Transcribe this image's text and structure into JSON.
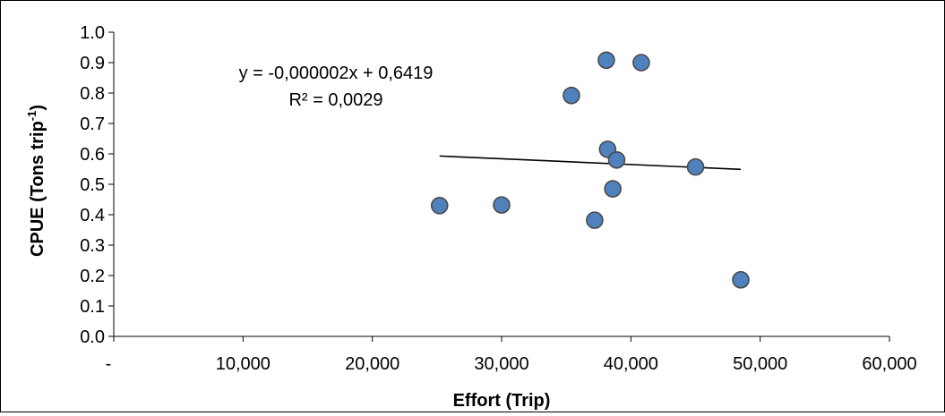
{
  "chart_data": {
    "type": "scatter",
    "xlabel": "Effort (Trip)",
    "ylabel": "CPUE (Tons trip",
    "ylabel_superscript": "-1",
    "ylabel_close": ")",
    "xlim": [
      0,
      60000
    ],
    "ylim": [
      0.0,
      1.0
    ],
    "x_ticks": [
      {
        "value": 0,
        "label": "-"
      },
      {
        "value": 10000,
        "label": "10,000"
      },
      {
        "value": 20000,
        "label": "20,000"
      },
      {
        "value": 30000,
        "label": "30,000"
      },
      {
        "value": 40000,
        "label": "40,000"
      },
      {
        "value": 50000,
        "label": "50,000"
      },
      {
        "value": 60000,
        "label": "60,000"
      }
    ],
    "y_ticks": [
      {
        "value": 0.0,
        "label": "0.0"
      },
      {
        "value": 0.1,
        "label": "0.1"
      },
      {
        "value": 0.2,
        "label": "0.2"
      },
      {
        "value": 0.3,
        "label": "0.3"
      },
      {
        "value": 0.4,
        "label": "0.4"
      },
      {
        "value": 0.5,
        "label": "0.5"
      },
      {
        "value": 0.6,
        "label": "0.6"
      },
      {
        "value": 0.7,
        "label": "0.7"
      },
      {
        "value": 0.8,
        "label": "0.8"
      },
      {
        "value": 0.9,
        "label": "0.9"
      },
      {
        "value": 1.0,
        "label": "1.0"
      }
    ],
    "grid": false,
    "legend": "none",
    "points": [
      {
        "x": 25200,
        "y": 0.43
      },
      {
        "x": 30000,
        "y": 0.432
      },
      {
        "x": 35400,
        "y": 0.792
      },
      {
        "x": 37200,
        "y": 0.382
      },
      {
        "x": 38100,
        "y": 0.908
      },
      {
        "x": 38200,
        "y": 0.615
      },
      {
        "x": 38600,
        "y": 0.485
      },
      {
        "x": 38900,
        "y": 0.58
      },
      {
        "x": 40800,
        "y": 0.9
      },
      {
        "x": 45000,
        "y": 0.557
      },
      {
        "x": 48500,
        "y": 0.186
      }
    ],
    "trendline": {
      "x_start": 25200,
      "x_end": 48500,
      "y_start": 0.593,
      "y_end": 0.549
    },
    "equation": "y = -0,000002x + 0,6419",
    "r_squared": "R² = 0,0029",
    "marker_color": "#4F81BD",
    "marker_edge_color": "#4A4A4A",
    "line_color": "#000000"
  }
}
